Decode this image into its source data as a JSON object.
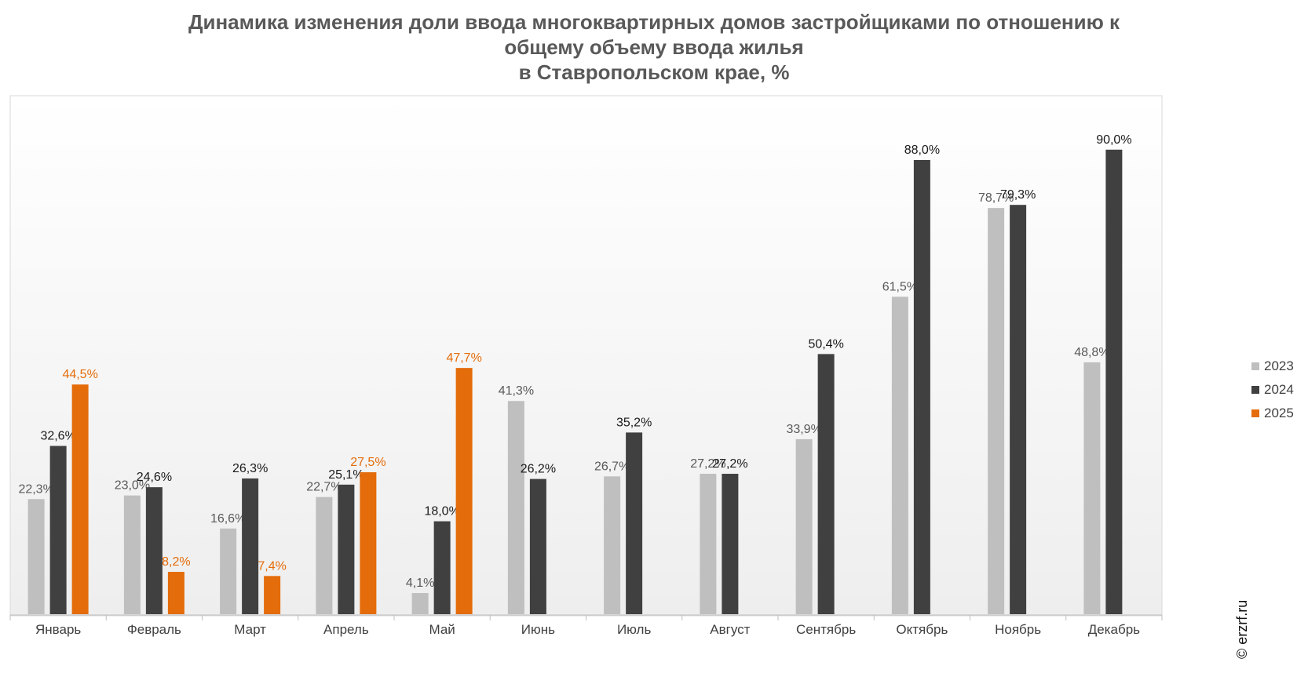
{
  "chart_data": {
    "type": "bar",
    "title": "Динамика изменения доли ввода многоквартирных домов застройщиками по отношению к общему объему ввода жилья в Ставропольском крае, %",
    "title_lines": [
      "Динамика изменения доли ввода многоквартирных домов застройщиками по отношению к",
      "общему объему ввода жилья",
      "в Ставропольском крае, %"
    ],
    "categories": [
      "Январь",
      "Февраль",
      "Март",
      "Апрель",
      "Май",
      "Июнь",
      "Июль",
      "Август",
      "Сентябрь",
      "Октябрь",
      "Ноябрь",
      "Декабрь"
    ],
    "series": [
      {
        "name": "2023",
        "color": "#bfbfbf",
        "label_color": "#595959",
        "values": [
          22.3,
          23.0,
          16.6,
          22.7,
          4.1,
          41.3,
          26.7,
          27.2,
          33.9,
          61.5,
          78.7,
          48.8
        ],
        "labels": [
          "22,3%",
          "23,0%",
          "16,6%",
          "22,7%",
          "4,1%",
          "41,3%",
          "26,7%",
          "27,2%",
          "33,9%",
          "61,5%",
          "78,7%",
          "48,8%"
        ]
      },
      {
        "name": "2024",
        "color": "#404040",
        "label_color": "#1a1a1a",
        "values": [
          32.6,
          24.6,
          26.3,
          25.1,
          18.0,
          26.2,
          35.2,
          27.2,
          50.4,
          88.0,
          79.3,
          90.0
        ],
        "labels": [
          "32,6%",
          "24,6%",
          "26,3%",
          "25,1%",
          "18,0%",
          "26,2%",
          "35,2%",
          "27,2%",
          "50,4%",
          "88,0%",
          "79,3%",
          "90,0%"
        ]
      },
      {
        "name": "2025",
        "color": "#e46c0a",
        "label_color": "#e46c0a",
        "values": [
          44.5,
          8.2,
          7.4,
          27.5,
          47.7,
          null,
          null,
          null,
          null,
          null,
          null,
          null
        ],
        "labels": [
          "44,5%",
          "8,2%",
          "7,4%",
          "27,5%",
          "47,7%",
          null,
          null,
          null,
          null,
          null,
          null,
          null
        ]
      }
    ],
    "ylim": [
      0,
      100
    ],
    "grid": false,
    "legend_position": "right",
    "xlabel": "",
    "ylabel": ""
  },
  "watermark": "© erzrf.ru"
}
